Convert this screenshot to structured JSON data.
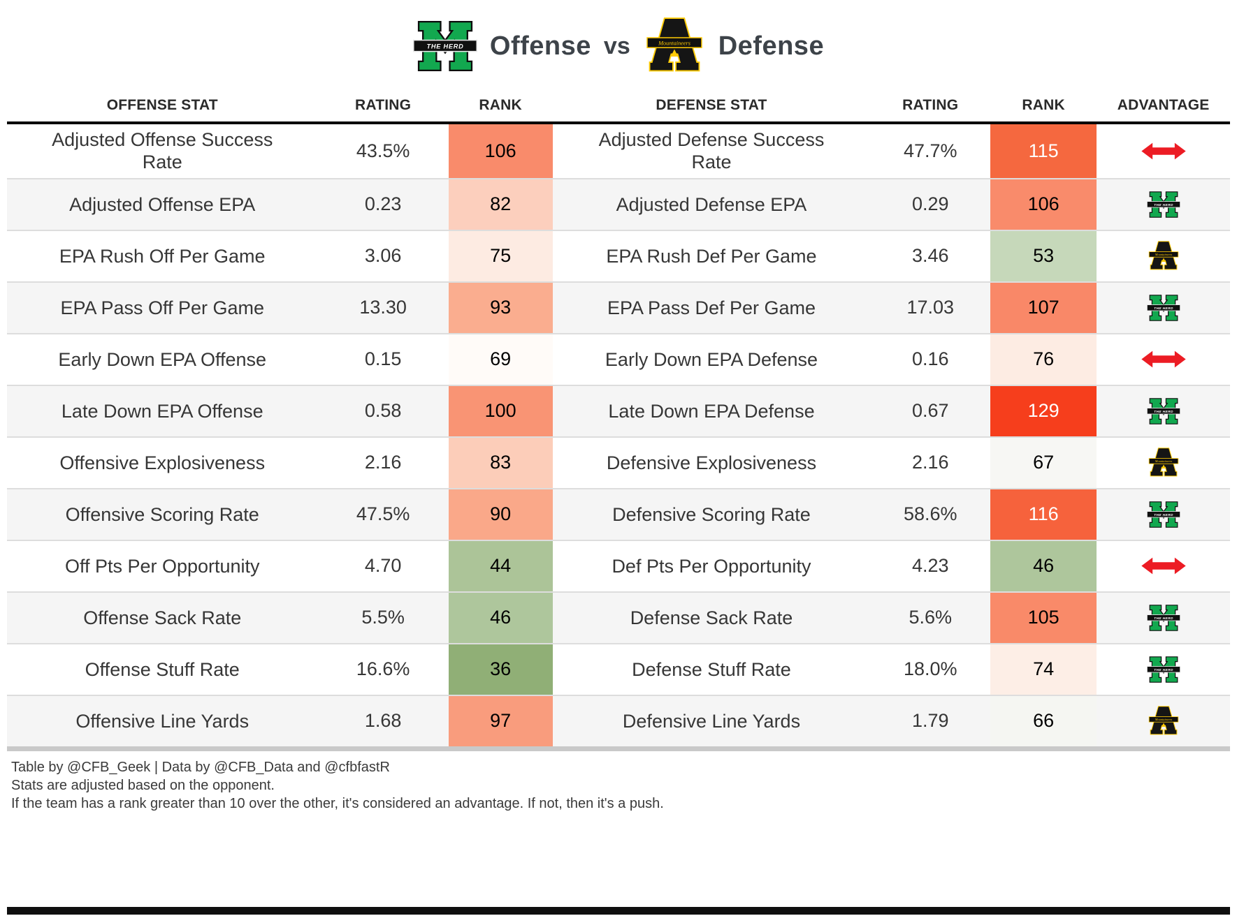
{
  "title": {
    "offense_team": "Marshall",
    "offense_label": "Offense",
    "vs_label": "vs",
    "defense_team": "Appalachian State",
    "defense_label": "Defense"
  },
  "icons": {
    "push": "push-arrow-icon",
    "marshall": "marshall-logo",
    "appstate": "appstate-logo"
  },
  "colors": {
    "marshall_green": "#12a84f",
    "appstate_gold": "#ffcb05",
    "push_red": "#ec1c24",
    "stripe_gray": "#f5f5f5",
    "header_border": "#000000"
  },
  "chart_data": {
    "type": "table",
    "title": "Marshall Offense vs Appalachian State Defense",
    "columns": [
      "OFFENSE STAT",
      "RATING",
      "RANK",
      "DEFENSE STAT",
      "RATING",
      "RANK",
      "ADVANTAGE"
    ],
    "rows": [
      {
        "offense_stat": "Adjusted Offense Success Rate",
        "offense_rating": "43.5%",
        "offense_rank": "106",
        "offense_rank_bg": "#f98b6b",
        "offense_rank_fg": "#000000",
        "defense_stat": "Adjusted Defense Success Rate",
        "defense_rating": "47.7%",
        "defense_rank": "115",
        "defense_rank_bg": "#f5683f",
        "defense_rank_fg": "#ffffff",
        "advantage": "push"
      },
      {
        "offense_stat": "Adjusted Offense EPA",
        "offense_rating": "0.23",
        "offense_rank": "82",
        "offense_rank_bg": "#fccfbd",
        "offense_rank_fg": "#000000",
        "defense_stat": "Adjusted Defense EPA",
        "defense_rating": "0.29",
        "defense_rank": "106",
        "defense_rank_bg": "#f98b6b",
        "defense_rank_fg": "#000000",
        "advantage": "marshall"
      },
      {
        "offense_stat": "EPA Rush Off Per Game",
        "offense_rating": "3.06",
        "offense_rank": "75",
        "offense_rank_bg": "#fdebe2",
        "offense_rank_fg": "#000000",
        "defense_stat": "EPA Rush Def Per Game",
        "defense_rating": "3.46",
        "defense_rank": "53",
        "defense_rank_bg": "#c6d8ba",
        "defense_rank_fg": "#000000",
        "advantage": "appstate"
      },
      {
        "offense_stat": "EPA Pass Off Per Game",
        "offense_rating": "13.30",
        "offense_rank": "93",
        "offense_rank_bg": "#faad8f",
        "offense_rank_fg": "#000000",
        "defense_stat": "EPA Pass Def Per Game",
        "defense_rating": "17.03",
        "defense_rank": "107",
        "defense_rank_bg": "#f98868",
        "defense_rank_fg": "#000000",
        "advantage": "marshall"
      },
      {
        "offense_stat": "Early Down EPA Offense",
        "offense_rating": "0.15",
        "offense_rank": "69",
        "offense_rank_bg": "#fffbf8",
        "offense_rank_fg": "#000000",
        "defense_stat": "Early Down EPA Defense",
        "defense_rating": "0.16",
        "defense_rank": "76",
        "defense_rank_bg": "#fdece3",
        "defense_rank_fg": "#000000",
        "advantage": "push"
      },
      {
        "offense_stat": "Late Down EPA Offense",
        "offense_rating": "0.58",
        "offense_rank": "100",
        "offense_rank_bg": "#f99474",
        "offense_rank_fg": "#000000",
        "defense_stat": "Late Down EPA Defense",
        "defense_rating": "0.67",
        "defense_rank": "129",
        "defense_rank_bg": "#f63e1c",
        "defense_rank_fg": "#ffffff",
        "advantage": "marshall"
      },
      {
        "offense_stat": "Offensive Explosiveness",
        "offense_rating": "2.16",
        "offense_rank": "83",
        "offense_rank_bg": "#fccdb9",
        "offense_rank_fg": "#000000",
        "defense_stat": "Defensive Explosiveness",
        "defense_rating": "2.16",
        "defense_rank": "67",
        "defense_rank_bg": "#f7f7f4",
        "defense_rank_fg": "#000000",
        "advantage": "appstate"
      },
      {
        "offense_stat": "Offensive Scoring Rate",
        "offense_rating": "47.5%",
        "offense_rank": "90",
        "offense_rank_bg": "#faa889",
        "offense_rank_fg": "#000000",
        "defense_stat": "Defensive Scoring Rate",
        "defense_rating": "58.6%",
        "defense_rank": "116",
        "defense_rank_bg": "#f6623c",
        "defense_rank_fg": "#ffffff",
        "advantage": "marshall"
      },
      {
        "offense_stat": "Off Pts Per Opportunity",
        "offense_rating": "4.70",
        "offense_rank": "44",
        "offense_rank_bg": "#acc498",
        "offense_rank_fg": "#000000",
        "defense_stat": "Def Pts Per Opportunity",
        "defense_rating": "4.23",
        "defense_rank": "46",
        "defense_rank_bg": "#aec69c",
        "defense_rank_fg": "#000000",
        "advantage": "push"
      },
      {
        "offense_stat": "Offense Sack Rate",
        "offense_rating": "5.5%",
        "offense_rank": "46",
        "offense_rank_bg": "#aec69c",
        "offense_rank_fg": "#000000",
        "defense_stat": "Defense Sack Rate",
        "defense_rating": "5.6%",
        "defense_rank": "105",
        "defense_rank_bg": "#f98a69",
        "defense_rank_fg": "#000000",
        "advantage": "marshall"
      },
      {
        "offense_stat": "Offense Stuff Rate",
        "offense_rating": "16.6%",
        "offense_rank": "36",
        "offense_rank_bg": "#90af76",
        "offense_rank_fg": "#000000",
        "defense_stat": "Defense Stuff Rate",
        "defense_rating": "18.0%",
        "defense_rank": "74",
        "defense_rank_bg": "#fdeee6",
        "defense_rank_fg": "#000000",
        "advantage": "marshall"
      },
      {
        "offense_stat": "Offensive Line Yards",
        "offense_rating": "1.68",
        "offense_rank": "97",
        "offense_rank_bg": "#f99c7d",
        "offense_rank_fg": "#000000",
        "defense_stat": "Defensive Line Yards",
        "defense_rating": "1.79",
        "defense_rank": "66",
        "defense_rank_bg": "#f5f6f2",
        "defense_rank_fg": "#000000",
        "advantage": "appstate"
      }
    ]
  },
  "footer": {
    "line1": "Table by @CFB_Geek | Data by @CFB_Data and @cfbfastR",
    "line2": "Stats are adjusted based on the opponent.",
    "line3": "If the team has a rank greater than 10 over the other, it's considered an advantage. If not, then it's a push."
  }
}
